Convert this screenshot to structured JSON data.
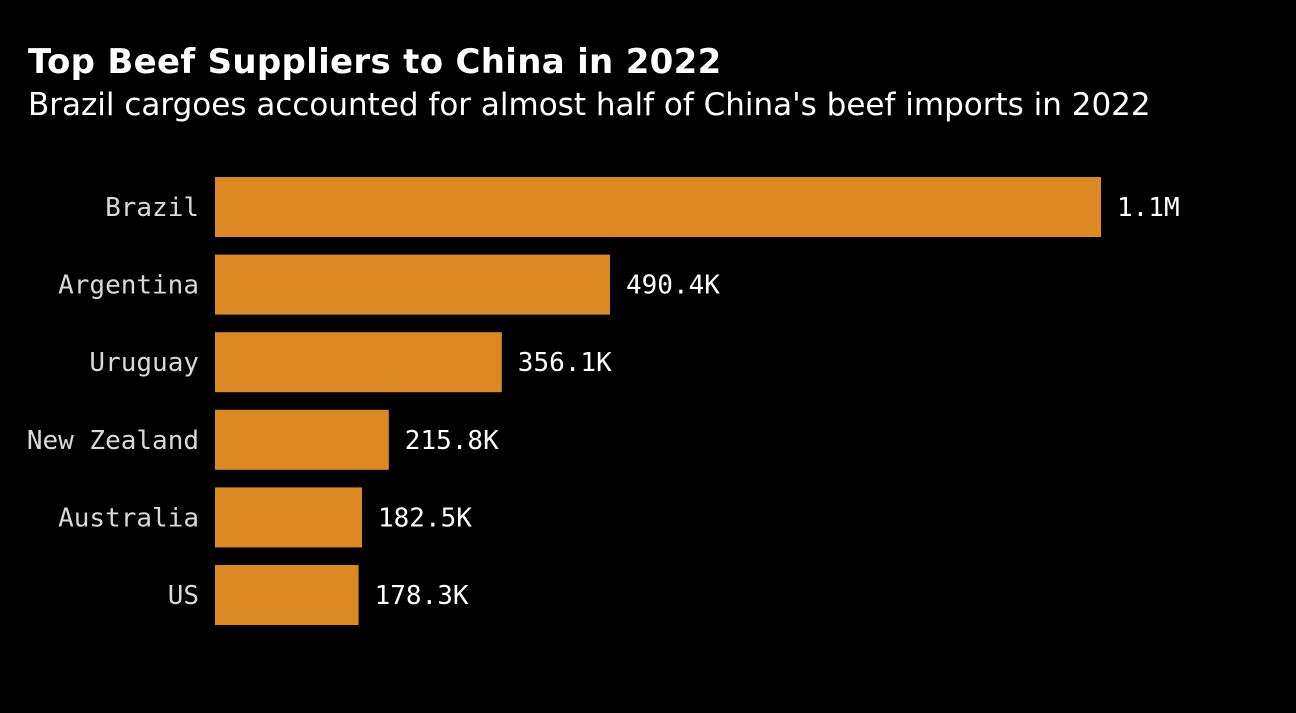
{
  "chart_data": {
    "type": "bar",
    "orientation": "horizontal",
    "title": "Top Beef Suppliers to China in 2022",
    "subtitle": "Brazil cargoes accounted for almost half of China's beef imports in 2022",
    "categories": [
      "Brazil",
      "Argentina",
      "Uruguay",
      "New Zealand",
      "Australia",
      "US"
    ],
    "values": [
      1100000,
      490400,
      356100,
      215800,
      182500,
      178300
    ],
    "value_labels": [
      "1.1M",
      "490.4K",
      "356.1K",
      "215.8K",
      "182.5K",
      "178.3K"
    ],
    "xlabel": "",
    "ylabel": "",
    "xlim": [
      0,
      1100000
    ],
    "grid": false,
    "legend": "none"
  },
  "colors": {
    "background": "#000000",
    "bar": "#dd8923",
    "title_text": "#ffffff",
    "category_text": "#d9d9d9",
    "value_text": "#ffffff"
  }
}
